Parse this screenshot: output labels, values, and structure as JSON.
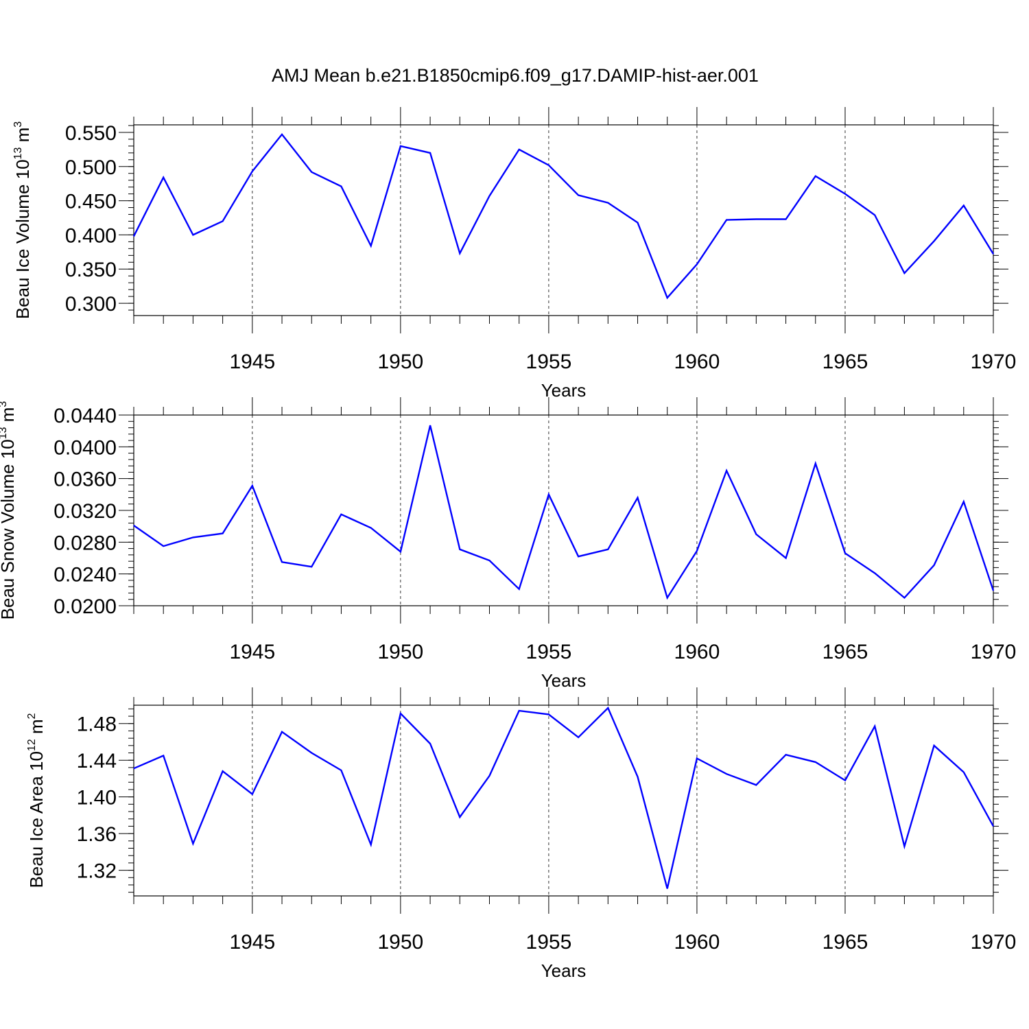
{
  "figure_title": "AMJ Mean b.e21.B1850cmip6.f09_g17.DAMIP-hist-aer.001",
  "colors": {
    "line": "#0000ff",
    "axis": "#000000"
  },
  "chart_data": [
    {
      "type": "line",
      "title": "",
      "xlabel": "Years",
      "ylabel": "Beau Ice Volume 10",
      "ylabel_exp": "13",
      "ylabel_unit": " m",
      "ylabel_unit_exp": "3",
      "xlim": [
        1941,
        1970
      ],
      "ylim": [
        0.282,
        0.561
      ],
      "x_ticks": [
        1945,
        1950,
        1955,
        1960,
        1965,
        1970
      ],
      "x_tick_labels": [
        "1945",
        "1950",
        "1955",
        "1960",
        "1965",
        "1970"
      ],
      "y_ticks": [
        0.3,
        0.35,
        0.4,
        0.45,
        0.5,
        0.55
      ],
      "y_tick_labels": [
        "0.300",
        "0.350",
        "0.400",
        "0.450",
        "0.500",
        "0.550"
      ],
      "y_minor_step": 0.01,
      "grid": "dashed vertical at major x ticks",
      "x": [
        1941,
        1942,
        1943,
        1944,
        1945,
        1946,
        1947,
        1948,
        1949,
        1950,
        1951,
        1952,
        1953,
        1954,
        1955,
        1956,
        1957,
        1958,
        1959,
        1960,
        1961,
        1962,
        1963,
        1964,
        1965,
        1966,
        1967,
        1968,
        1969,
        1970
      ],
      "series": [
        {
          "name": "Beau Ice Volume",
          "values": [
            0.398,
            0.484,
            0.4,
            0.42,
            0.493,
            0.547,
            0.492,
            0.471,
            0.384,
            0.53,
            0.52,
            0.373,
            0.457,
            0.525,
            0.502,
            0.458,
            0.447,
            0.418,
            0.308,
            0.357,
            0.422,
            0.423,
            0.423,
            0.486,
            0.46,
            0.429,
            0.344,
            0.391,
            0.443,
            0.372
          ]
        }
      ]
    },
    {
      "type": "line",
      "title": "",
      "xlabel": "Years",
      "ylabel": "Beau Snow Volume 10",
      "ylabel_exp": "13",
      "ylabel_unit": " m",
      "ylabel_unit_exp": "3",
      "xlim": [
        1941,
        1970
      ],
      "ylim": [
        0.02,
        0.044
      ],
      "x_ticks": [
        1945,
        1950,
        1955,
        1960,
        1965,
        1970
      ],
      "x_tick_labels": [
        "1945",
        "1950",
        "1955",
        "1960",
        "1965",
        "1970"
      ],
      "y_ticks": [
        0.02,
        0.024,
        0.028,
        0.032,
        0.036,
        0.04,
        0.044
      ],
      "y_tick_labels": [
        "0.0200",
        "0.0240",
        "0.0280",
        "0.0320",
        "0.0360",
        "0.0400",
        "0.0440"
      ],
      "y_minor_step": 0.0008,
      "grid": "dashed vertical at major x ticks",
      "x": [
        1941,
        1942,
        1943,
        1944,
        1945,
        1946,
        1947,
        1948,
        1949,
        1950,
        1951,
        1952,
        1953,
        1954,
        1955,
        1956,
        1957,
        1958,
        1959,
        1960,
        1961,
        1962,
        1963,
        1964,
        1965,
        1966,
        1967,
        1968,
        1969,
        1970
      ],
      "series": [
        {
          "name": "Beau Snow Volume",
          "values": [
            0.0301,
            0.0275,
            0.0286,
            0.0291,
            0.0351,
            0.0255,
            0.0249,
            0.0315,
            0.0298,
            0.0268,
            0.0427,
            0.0271,
            0.0257,
            0.0221,
            0.034,
            0.0262,
            0.0271,
            0.0336,
            0.021,
            0.0269,
            0.037,
            0.029,
            0.026,
            0.0379,
            0.0266,
            0.0241,
            0.021,
            0.0251,
            0.0331,
            0.0219
          ]
        }
      ]
    },
    {
      "type": "line",
      "title": "",
      "xlabel": "Years",
      "ylabel": "Beau Ice Area 10",
      "ylabel_exp": "12",
      "ylabel_unit": " m",
      "ylabel_unit_exp": "2",
      "xlim": [
        1941,
        1970
      ],
      "ylim": [
        1.292,
        1.5
      ],
      "x_ticks": [
        1945,
        1950,
        1955,
        1960,
        1965,
        1970
      ],
      "x_tick_labels": [
        "1945",
        "1950",
        "1955",
        "1960",
        "1965",
        "1970"
      ],
      "y_ticks": [
        1.32,
        1.36,
        1.4,
        1.44,
        1.48
      ],
      "y_tick_labels": [
        "1.32",
        "1.36",
        "1.40",
        "1.44",
        "1.48"
      ],
      "y_minor_step": 0.008,
      "grid": "dashed vertical at major x ticks",
      "x": [
        1941,
        1942,
        1943,
        1944,
        1945,
        1946,
        1947,
        1948,
        1949,
        1950,
        1951,
        1952,
        1953,
        1954,
        1955,
        1956,
        1957,
        1958,
        1959,
        1960,
        1961,
        1962,
        1963,
        1964,
        1965,
        1966,
        1967,
        1968,
        1969,
        1970
      ],
      "series": [
        {
          "name": "Beau Ice Area",
          "values": [
            1.431,
            1.445,
            1.349,
            1.428,
            1.403,
            1.471,
            1.448,
            1.429,
            1.348,
            1.491,
            1.458,
            1.378,
            1.423,
            1.494,
            1.49,
            1.465,
            1.497,
            1.422,
            1.3,
            1.442,
            1.425,
            1.413,
            1.446,
            1.438,
            1.418,
            1.477,
            1.346,
            1.456,
            1.427,
            1.368
          ]
        }
      ]
    }
  ]
}
